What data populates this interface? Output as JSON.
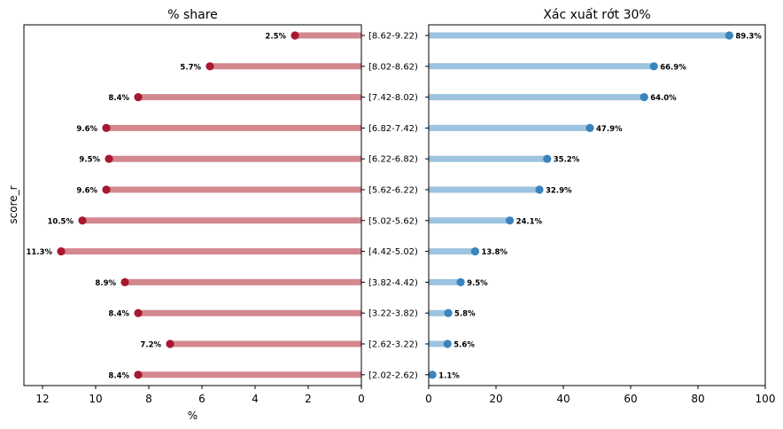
{
  "chart_data": [
    {
      "type": "lollipop",
      "orientation": "horizontal",
      "title": "% share",
      "xlabel": "%",
      "ylabel": "score_r",
      "xlim": [
        12.7,
        0
      ],
      "xticks": [
        12,
        10,
        8,
        6,
        4,
        2,
        0
      ],
      "categories": [
        "[8.62-9.22)",
        "[8.02-8.62)",
        "[7.42-8.02)",
        "[6.82-7.42)",
        "[6.22-6.82)",
        "[5.62-6.22)",
        "[5.02-5.62)",
        "[4.42-5.02)",
        "[3.82-4.42)",
        "[3.22-3.82)",
        "[2.62-3.22)",
        "[2.02-2.62)"
      ],
      "values": [
        2.5,
        5.7,
        8.4,
        9.6,
        9.5,
        9.6,
        10.5,
        11.3,
        8.9,
        8.4,
        7.2,
        8.4
      ],
      "labels": [
        "2.5%",
        "5.7%",
        "8.4%",
        "9.6%",
        "9.5%",
        "9.6%",
        "10.5%",
        "11.3%",
        "8.9%",
        "8.4%",
        "7.2%",
        "8.4%"
      ],
      "stem_color": "#d3878f",
      "dot_color": "#a8182e",
      "grid": false
    },
    {
      "type": "lollipop",
      "orientation": "horizontal",
      "title": "Xác xuất rớt 30%",
      "xlabel": "",
      "ylabel": "",
      "xlim": [
        0,
        100
      ],
      "xticks": [
        0,
        20,
        40,
        60,
        80,
        100
      ],
      "categories": [
        "[8.62-9.22)",
        "[8.02-8.62)",
        "[7.42-8.02)",
        "[6.82-7.42)",
        "[6.22-6.82)",
        "[5.62-6.22)",
        "[5.02-5.62)",
        "[4.42-5.02)",
        "[3.82-4.42)",
        "[3.22-3.82)",
        "[2.62-3.22)",
        "[2.02-2.62)"
      ],
      "values": [
        89.3,
        66.9,
        64.0,
        47.9,
        35.2,
        32.9,
        24.1,
        13.8,
        9.5,
        5.8,
        5.6,
        1.1
      ],
      "labels": [
        "89.3%",
        "66.9%",
        "64.0%",
        "47.9%",
        "35.2%",
        "32.9%",
        "24.1%",
        "13.8%",
        "9.5%",
        "5.8%",
        "5.6%",
        "1.1%"
      ],
      "stem_color": "#9cc3df",
      "dot_color": "#3a84bd",
      "grid": false
    }
  ]
}
